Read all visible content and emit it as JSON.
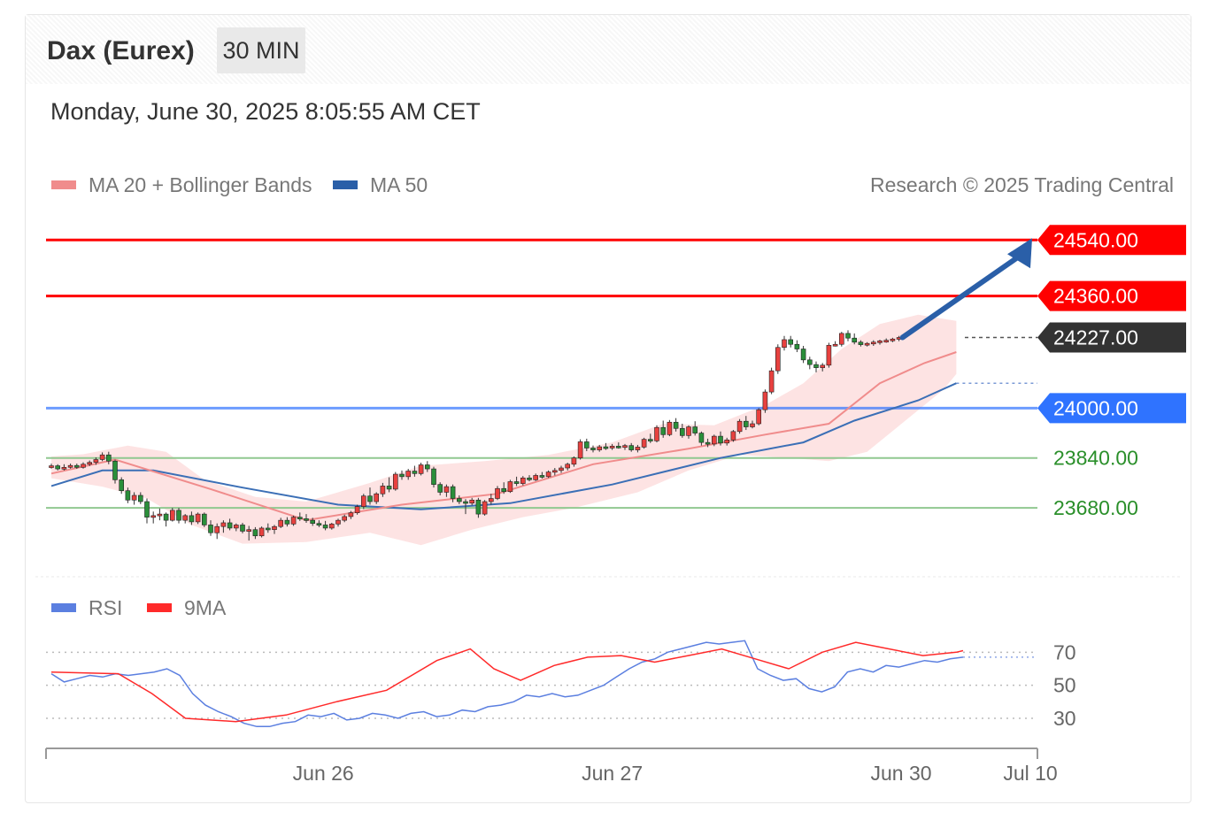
{
  "header": {
    "title": "Dax (Eurex)",
    "interval": "30 MIN",
    "datetime": "Monday, June 30, 2025 8:05:55 AM CET"
  },
  "legend": {
    "ma20_label": "MA 20 + Bollinger Bands",
    "ma50_label": "MA 50",
    "copyright": "Research © 2025 Trading Central",
    "rsi_label": "RSI",
    "rsi_ma_label": "9MA"
  },
  "colors": {
    "candle_up": "#e8413f",
    "candle_down": "#2a8f3a",
    "candle_body": "#e8413f",
    "ma20": "#f08c8c",
    "bollinger_fill": "#fde3e3",
    "ma50": "#3b6fb6",
    "resistance": "#ff0000",
    "pivot": "#2f73ff",
    "support": "#90c890",
    "support_text": "#2a8f2a",
    "current": "#333333",
    "arrow": "#2a5fa8",
    "rsi": "#5b7fe0",
    "rsi_ma": "#ff2a2a"
  },
  "chart_data": {
    "type": "candlestick",
    "y_range": [
      23470,
      24680
    ],
    "levels": [
      {
        "value": 24540,
        "label": "24540.00",
        "kind": "resistance"
      },
      {
        "value": 24360,
        "label": "24360.00",
        "kind": "resistance"
      },
      {
        "value": 24227,
        "label": "24227.00",
        "kind": "current"
      },
      {
        "value": 24000,
        "label": "24000.00",
        "kind": "pivot"
      },
      {
        "value": 23840,
        "label": "23840.00",
        "kind": "support"
      },
      {
        "value": 23680,
        "label": "23680.00",
        "kind": "support"
      }
    ],
    "x_ticks": [
      {
        "index": 48,
        "label": "Jun 26"
      },
      {
        "index": 99,
        "label": "Jun 27"
      },
      {
        "index": 150,
        "label": "Jun 30"
      },
      {
        "index": 172,
        "label": "Jul 10"
      }
    ],
    "arrow": {
      "from": 24227,
      "to": 24540
    },
    "candles": [
      [
        23812,
        23822,
        23806,
        23815
      ],
      [
        23815,
        23820,
        23800,
        23805
      ],
      [
        23805,
        23820,
        23800,
        23810
      ],
      [
        23810,
        23822,
        23806,
        23816
      ],
      [
        23816,
        23822,
        23805,
        23810
      ],
      [
        23810,
        23826,
        23806,
        23820
      ],
      [
        23820,
        23832,
        23814,
        23826
      ],
      [
        23826,
        23842,
        23818,
        23835
      ],
      [
        23835,
        23858,
        23830,
        23850
      ],
      [
        23850,
        23860,
        23820,
        23830
      ],
      [
        23830,
        23835,
        23758,
        23770
      ],
      [
        23770,
        23778,
        23725,
        23735
      ],
      [
        23735,
        23745,
        23695,
        23705
      ],
      [
        23705,
        23730,
        23690,
        23720
      ],
      [
        23720,
        23730,
        23692,
        23700
      ],
      [
        23700,
        23710,
        23630,
        23650
      ],
      [
        23650,
        23668,
        23630,
        23655
      ],
      [
        23655,
        23678,
        23640,
        23660
      ],
      [
        23660,
        23665,
        23620,
        23640
      ],
      [
        23640,
        23680,
        23636,
        23672
      ],
      [
        23672,
        23680,
        23630,
        23640
      ],
      [
        23640,
        23660,
        23630,
        23655
      ],
      [
        23655,
        23668,
        23625,
        23635
      ],
      [
        23635,
        23665,
        23628,
        23660
      ],
      [
        23660,
        23665,
        23618,
        23625
      ],
      [
        23625,
        23640,
        23590,
        23600
      ],
      [
        23600,
        23630,
        23580,
        23620
      ],
      [
        23620,
        23640,
        23600,
        23632
      ],
      [
        23632,
        23645,
        23608,
        23615
      ],
      [
        23615,
        23630,
        23605,
        23625
      ],
      [
        23625,
        23632,
        23598,
        23605
      ],
      [
        23605,
        23622,
        23575,
        23610
      ],
      [
        23610,
        23618,
        23580,
        23590
      ],
      [
        23590,
        23620,
        23585,
        23615
      ],
      [
        23615,
        23630,
        23600,
        23610
      ],
      [
        23610,
        23625,
        23596,
        23620
      ],
      [
        23620,
        23648,
        23615,
        23640
      ],
      [
        23640,
        23650,
        23620,
        23628
      ],
      [
        23628,
        23655,
        23622,
        23650
      ],
      [
        23650,
        23665,
        23638,
        23645
      ],
      [
        23645,
        23660,
        23632,
        23640
      ],
      [
        23640,
        23648,
        23622,
        23630
      ],
      [
        23630,
        23640,
        23618,
        23625
      ],
      [
        23625,
        23638,
        23608,
        23615
      ],
      [
        23615,
        23632,
        23610,
        23628
      ],
      [
        23628,
        23645,
        23620,
        23640
      ],
      [
        23640,
        23658,
        23634,
        23652
      ],
      [
        23652,
        23670,
        23644,
        23664
      ],
      [
        23664,
        23690,
        23658,
        23684
      ],
      [
        23684,
        23725,
        23676,
        23718
      ],
      [
        23718,
        23745,
        23690,
        23700
      ],
      [
        23700,
        23730,
        23692,
        23725
      ],
      [
        23725,
        23760,
        23715,
        23750
      ],
      [
        23750,
        23778,
        23730,
        23740
      ],
      [
        23740,
        23795,
        23735,
        23788
      ],
      [
        23788,
        23800,
        23770,
        23780
      ],
      [
        23780,
        23805,
        23770,
        23798
      ],
      [
        23798,
        23815,
        23780,
        23790
      ],
      [
        23790,
        23825,
        23784,
        23818
      ],
      [
        23818,
        23830,
        23795,
        23805
      ],
      [
        23805,
        23812,
        23745,
        23755
      ],
      [
        23755,
        23762,
        23720,
        23730
      ],
      [
        23730,
        23755,
        23715,
        23748
      ],
      [
        23748,
        23755,
        23698,
        23710
      ],
      [
        23710,
        23720,
        23692,
        23700
      ],
      [
        23700,
        23708,
        23660,
        23695
      ],
      [
        23695,
        23712,
        23688,
        23705
      ],
      [
        23705,
        23712,
        23648,
        23660
      ],
      [
        23660,
        23705,
        23655,
        23700
      ],
      [
        23700,
        23725,
        23690,
        23710
      ],
      [
        23710,
        23750,
        23705,
        23742
      ],
      [
        23742,
        23762,
        23725,
        23732
      ],
      [
        23732,
        23770,
        23728,
        23764
      ],
      [
        23764,
        23780,
        23750,
        23758
      ],
      [
        23758,
        23782,
        23752,
        23776
      ],
      [
        23776,
        23785,
        23765,
        23770
      ],
      [
        23770,
        23790,
        23766,
        23784
      ],
      [
        23784,
        23795,
        23774,
        23780
      ],
      [
        23780,
        23800,
        23776,
        23795
      ],
      [
        23795,
        23808,
        23784,
        23800
      ],
      [
        23800,
        23815,
        23792,
        23808
      ],
      [
        23808,
        23825,
        23800,
        23820
      ],
      [
        23820,
        23845,
        23812,
        23840
      ],
      [
        23840,
        23900,
        23835,
        23892
      ],
      [
        23892,
        23902,
        23862,
        23872
      ],
      [
        23872,
        23880,
        23858,
        23866
      ],
      [
        23866,
        23882,
        23860,
        23876
      ],
      [
        23876,
        23888,
        23866,
        23872
      ],
      [
        23872,
        23885,
        23866,
        23878
      ],
      [
        23878,
        23890,
        23870,
        23874
      ],
      [
        23874,
        23885,
        23866,
        23880
      ],
      [
        23880,
        23888,
        23860,
        23866
      ],
      [
        23866,
        23882,
        23858,
        23875
      ],
      [
        23875,
        23905,
        23870,
        23900
      ],
      [
        23900,
        23918,
        23888,
        23895
      ],
      [
        23895,
        23945,
        23890,
        23938
      ],
      [
        23938,
        23960,
        23905,
        23915
      ],
      [
        23915,
        23962,
        23910,
        23955
      ],
      [
        23955,
        23968,
        23925,
        23935
      ],
      [
        23935,
        23950,
        23905,
        23912
      ],
      [
        23912,
        23945,
        23902,
        23940
      ],
      [
        23940,
        23958,
        23912,
        23920
      ],
      [
        23920,
        23925,
        23880,
        23890
      ],
      [
        23890,
        23902,
        23875,
        23885
      ],
      [
        23885,
        23915,
        23878,
        23910
      ],
      [
        23910,
        23925,
        23880,
        23888
      ],
      [
        23888,
        23905,
        23880,
        23898
      ],
      [
        23898,
        23930,
        23892,
        23925
      ],
      [
        23925,
        23965,
        23918,
        23958
      ],
      [
        23958,
        23975,
        23930,
        23940
      ],
      [
        23940,
        23960,
        23935,
        23950
      ],
      [
        23950,
        24000,
        23945,
        23995
      ],
      [
        23995,
        24060,
        23985,
        24052
      ],
      [
        24052,
        24130,
        24045,
        24120
      ],
      [
        24120,
        24205,
        24110,
        24195
      ],
      [
        24195,
        24232,
        24185,
        24220
      ],
      [
        24220,
        24232,
        24195,
        24205
      ],
      [
        24205,
        24218,
        24180,
        24190
      ],
      [
        24190,
        24200,
        24145,
        24155
      ],
      [
        24155,
        24165,
        24125,
        24140
      ],
      [
        24140,
        24150,
        24115,
        24130
      ],
      [
        24130,
        24145,
        24118,
        24138
      ],
      [
        24138,
        24210,
        24130,
        24202
      ],
      [
        24202,
        24215,
        24198,
        24205
      ],
      [
        24205,
        24245,
        24198,
        24240
      ],
      [
        24240,
        24250,
        24215,
        24225
      ],
      [
        24225,
        24240,
        24205,
        24212
      ],
      [
        24212,
        24218,
        24198,
        24204
      ],
      [
        24204,
        24212,
        24198,
        24208
      ],
      [
        24208,
        24218,
        24200,
        24212
      ],
      [
        24212,
        24220,
        24204,
        24216
      ],
      [
        24216,
        24224,
        24210,
        24218
      ],
      [
        24218,
        24226,
        24212,
        24222
      ],
      [
        24222,
        24232,
        24215,
        24227
      ]
    ],
    "ma20": [
      [
        0,
        23790
      ],
      [
        10,
        23835
      ],
      [
        25,
        23740
      ],
      [
        40,
        23640
      ],
      [
        55,
        23690
      ],
      [
        70,
        23725
      ],
      [
        85,
        23820
      ],
      [
        100,
        23870
      ],
      [
        112,
        23915
      ],
      [
        122,
        23950
      ],
      [
        130,
        24080
      ],
      [
        137,
        24145
      ],
      [
        142,
        24180
      ]
    ],
    "bollinger_upper": [
      [
        0,
        23845
      ],
      [
        5,
        23852
      ],
      [
        12,
        23880
      ],
      [
        18,
        23860
      ],
      [
        24,
        23770
      ],
      [
        32,
        23715
      ],
      [
        40,
        23700
      ],
      [
        50,
        23760
      ],
      [
        58,
        23815
      ],
      [
        68,
        23830
      ],
      [
        78,
        23850
      ],
      [
        88,
        23890
      ],
      [
        96,
        23950
      ],
      [
        104,
        23945
      ],
      [
        112,
        24010
      ],
      [
        118,
        24080
      ],
      [
        124,
        24190
      ],
      [
        130,
        24270
      ],
      [
        136,
        24300
      ],
      [
        142,
        24280
      ]
    ],
    "bollinger_lower": [
      [
        0,
        23775
      ],
      [
        8,
        23748
      ],
      [
        15,
        23710
      ],
      [
        22,
        23625
      ],
      [
        30,
        23565
      ],
      [
        40,
        23570
      ],
      [
        50,
        23600
      ],
      [
        58,
        23560
      ],
      [
        66,
        23610
      ],
      [
        74,
        23650
      ],
      [
        82,
        23680
      ],
      [
        92,
        23730
      ],
      [
        100,
        23800
      ],
      [
        108,
        23850
      ],
      [
        116,
        23840
      ],
      [
        122,
        23830
      ],
      [
        128,
        23860
      ],
      [
        134,
        23960
      ],
      [
        140,
        24060
      ],
      [
        142,
        24110
      ]
    ],
    "ma50": [
      [
        0,
        23750
      ],
      [
        8,
        23800
      ],
      [
        16,
        23800
      ],
      [
        30,
        23745
      ],
      [
        45,
        23690
      ],
      [
        58,
        23675
      ],
      [
        72,
        23695
      ],
      [
        88,
        23755
      ],
      [
        105,
        23840
      ],
      [
        118,
        23890
      ],
      [
        126,
        23960
      ],
      [
        136,
        24025
      ],
      [
        142,
        24080
      ]
    ],
    "rsi": {
      "range": [
        15,
        90
      ],
      "ticks": [
        70,
        50,
        30
      ],
      "rsi": [
        [
          0,
          57
        ],
        [
          2,
          52
        ],
        [
          4,
          54
        ],
        [
          6,
          56
        ],
        [
          8,
          55
        ],
        [
          10,
          57
        ],
        [
          12,
          56
        ],
        [
          14,
          57
        ],
        [
          16,
          58
        ],
        [
          18,
          60
        ],
        [
          20,
          56
        ],
        [
          22,
          45
        ],
        [
          24,
          38
        ],
        [
          26,
          34
        ],
        [
          28,
          31
        ],
        [
          30,
          27
        ],
        [
          32,
          25
        ],
        [
          34,
          25
        ],
        [
          36,
          27
        ],
        [
          38,
          28
        ],
        [
          40,
          32
        ],
        [
          42,
          31
        ],
        [
          44,
          33
        ],
        [
          46,
          29
        ],
        [
          48,
          30
        ],
        [
          50,
          33
        ],
        [
          52,
          32
        ],
        [
          54,
          30
        ],
        [
          56,
          33
        ],
        [
          58,
          34
        ],
        [
          60,
          31
        ],
        [
          62,
          32
        ],
        [
          64,
          35
        ],
        [
          66,
          34
        ],
        [
          68,
          37
        ],
        [
          70,
          38
        ],
        [
          72,
          40
        ],
        [
          74,
          44
        ],
        [
          76,
          43
        ],
        [
          78,
          45
        ],
        [
          80,
          43
        ],
        [
          82,
          44
        ],
        [
          84,
          47
        ],
        [
          86,
          50
        ],
        [
          88,
          55
        ],
        [
          90,
          60
        ],
        [
          92,
          64
        ],
        [
          94,
          66
        ],
        [
          96,
          70
        ],
        [
          98,
          72
        ],
        [
          100,
          74
        ],
        [
          102,
          76
        ],
        [
          104,
          75
        ],
        [
          106,
          76
        ],
        [
          108,
          77
        ],
        [
          110,
          60
        ],
        [
          112,
          56
        ],
        [
          114,
          53
        ],
        [
          116,
          54
        ],
        [
          118,
          48
        ],
        [
          120,
          46
        ],
        [
          122,
          49
        ],
        [
          124,
          58
        ],
        [
          126,
          60
        ],
        [
          128,
          58
        ],
        [
          130,
          62
        ],
        [
          132,
          61
        ],
        [
          134,
          63
        ],
        [
          136,
          65
        ],
        [
          138,
          64
        ],
        [
          140,
          66
        ],
        [
          142,
          67
        ]
      ],
      "ma": [
        [
          0,
          58
        ],
        [
          20,
          57
        ],
        [
          30,
          45
        ],
        [
          40,
          30
        ],
        [
          55,
          28
        ],
        [
          70,
          32
        ],
        [
          85,
          40
        ],
        [
          100,
          47
        ],
        [
          115,
          65
        ],
        [
          125,
          72
        ],
        [
          132,
          60
        ],
        [
          140,
          53
        ],
        [
          150,
          62
        ],
        [
          160,
          67
        ],
        [
          170,
          68
        ],
        [
          180,
          64
        ],
        [
          190,
          68
        ],
        [
          200,
          72
        ],
        [
          210,
          66
        ],
        [
          220,
          60
        ],
        [
          230,
          70
        ],
        [
          240,
          76
        ],
        [
          250,
          72
        ],
        [
          260,
          68
        ],
        [
          270,
          70
        ],
        [
          272,
          71
        ]
      ]
    }
  }
}
